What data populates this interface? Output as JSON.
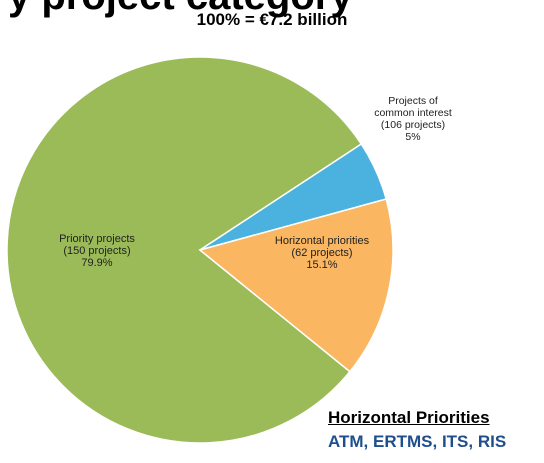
{
  "page": {
    "cut_title": "y project category",
    "subtitle": "100% = €7.2 billion"
  },
  "chart_data": {
    "type": "pie",
    "title": "",
    "subtitle": "100% = €7.2 billion",
    "slices": [
      {
        "key": "priority",
        "lines": [
          "Priority projects",
          "(150 projects)",
          "79.9%"
        ],
        "value": 79.9,
        "color": "#9bbb59"
      },
      {
        "key": "pci",
        "lines": [
          "Projects of",
          "common interest",
          "(106 projects)",
          "5%"
        ],
        "value": 5.0,
        "color": "#4bb2e0"
      },
      {
        "key": "horizontal",
        "lines": [
          "Horizontal priorities",
          "(62 projects)",
          "15.1%"
        ],
        "value": 15.1,
        "color": "#fab660"
      }
    ]
  },
  "horizontal_priorities": {
    "title": "Horizontal Priorities",
    "items": "ATM, ERTMS, ITS, RIS"
  }
}
